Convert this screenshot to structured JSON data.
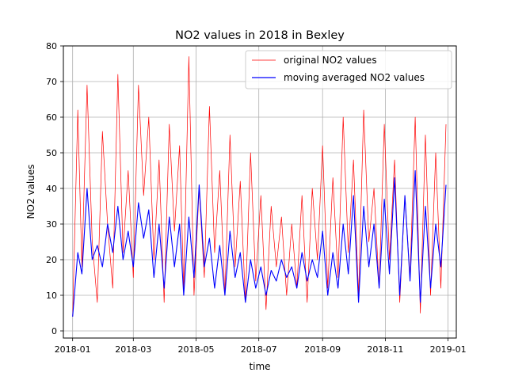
{
  "chart_data": {
    "type": "line",
    "title": "NO2 values in 2018 in Bexley",
    "xlabel": "time",
    "ylabel": "NO2 values",
    "xlim": [
      "2017-12-23",
      "2019-01-09"
    ],
    "ylim": [
      -2,
      80
    ],
    "x_ticks": [
      "2018-01",
      "2018-03",
      "2018-05",
      "2018-07",
      "2018-09",
      "2018-11",
      "2019-01"
    ],
    "y_ticks": [
      0,
      10,
      20,
      30,
      40,
      50,
      60,
      70,
      80
    ],
    "grid": true,
    "legend_position": "top-right",
    "series": [
      {
        "name": "original NO2 values",
        "color": "#ff0000",
        "x": [
          "2018-01-01",
          "2018-01-06",
          "2018-01-10",
          "2018-01-15",
          "2018-01-20",
          "2018-01-25",
          "2018-01-30",
          "2018-02-04",
          "2018-02-09",
          "2018-02-14",
          "2018-02-19",
          "2018-02-24",
          "2018-03-01",
          "2018-03-06",
          "2018-03-11",
          "2018-03-16",
          "2018-03-21",
          "2018-03-26",
          "2018-03-31",
          "2018-04-05",
          "2018-04-10",
          "2018-04-15",
          "2018-04-19",
          "2018-04-24",
          "2018-04-29",
          "2018-05-04",
          "2018-05-09",
          "2018-05-14",
          "2018-05-19",
          "2018-05-24",
          "2018-05-29",
          "2018-06-03",
          "2018-06-08",
          "2018-06-13",
          "2018-06-18",
          "2018-06-23",
          "2018-06-28",
          "2018-07-03",
          "2018-07-08",
          "2018-07-13",
          "2018-07-18",
          "2018-07-23",
          "2018-07-28",
          "2018-08-02",
          "2018-08-07",
          "2018-08-12",
          "2018-08-17",
          "2018-08-22",
          "2018-08-27",
          "2018-09-01",
          "2018-09-06",
          "2018-09-11",
          "2018-09-16",
          "2018-09-21",
          "2018-09-26",
          "2018-10-01",
          "2018-10-06",
          "2018-10-11",
          "2018-10-16",
          "2018-10-21",
          "2018-10-26",
          "2018-10-31",
          "2018-11-05",
          "2018-11-10",
          "2018-11-15",
          "2018-11-20",
          "2018-11-25",
          "2018-11-30",
          "2018-12-05",
          "2018-12-10",
          "2018-12-15",
          "2018-12-20",
          "2018-12-25",
          "2018-12-30"
        ],
        "values": [
          4,
          62,
          18,
          69,
          25,
          8,
          56,
          30,
          12,
          72,
          22,
          45,
          15,
          69,
          38,
          60,
          20,
          48,
          8,
          58,
          28,
          52,
          12,
          77,
          10,
          40,
          15,
          63,
          22,
          45,
          10,
          55,
          18,
          42,
          8,
          50,
          14,
          38,
          6,
          35,
          18,
          32,
          10,
          30,
          12,
          38,
          8,
          40,
          20,
          52,
          12,
          43,
          15,
          60,
          22,
          48,
          10,
          62,
          25,
          40,
          12,
          58,
          20,
          48,
          8,
          38,
          15,
          60,
          5,
          55,
          10,
          50,
          12,
          58
        ]
      },
      {
        "name": "moving averaged NO2 values",
        "color": "#0000ff",
        "x": [
          "2018-01-01",
          "2018-01-06",
          "2018-01-10",
          "2018-01-15",
          "2018-01-20",
          "2018-01-25",
          "2018-01-30",
          "2018-02-04",
          "2018-02-09",
          "2018-02-14",
          "2018-02-19",
          "2018-02-24",
          "2018-03-01",
          "2018-03-06",
          "2018-03-11",
          "2018-03-16",
          "2018-03-21",
          "2018-03-26",
          "2018-03-31",
          "2018-04-05",
          "2018-04-10",
          "2018-04-15",
          "2018-04-19",
          "2018-04-24",
          "2018-04-29",
          "2018-05-04",
          "2018-05-09",
          "2018-05-14",
          "2018-05-19",
          "2018-05-24",
          "2018-05-29",
          "2018-06-03",
          "2018-06-08",
          "2018-06-13",
          "2018-06-18",
          "2018-06-23",
          "2018-06-28",
          "2018-07-03",
          "2018-07-08",
          "2018-07-13",
          "2018-07-18",
          "2018-07-23",
          "2018-07-28",
          "2018-08-02",
          "2018-08-07",
          "2018-08-12",
          "2018-08-17",
          "2018-08-22",
          "2018-08-27",
          "2018-09-01",
          "2018-09-06",
          "2018-09-11",
          "2018-09-16",
          "2018-09-21",
          "2018-09-26",
          "2018-10-01",
          "2018-10-06",
          "2018-10-11",
          "2018-10-16",
          "2018-10-21",
          "2018-10-26",
          "2018-10-31",
          "2018-11-05",
          "2018-11-10",
          "2018-11-15",
          "2018-11-20",
          "2018-11-25",
          "2018-11-30",
          "2018-12-05",
          "2018-12-10",
          "2018-12-15",
          "2018-12-20",
          "2018-12-25",
          "2018-12-30"
        ],
        "values": [
          4,
          22,
          16,
          40,
          20,
          24,
          18,
          30,
          22,
          35,
          20,
          28,
          18,
          36,
          26,
          34,
          15,
          30,
          12,
          32,
          18,
          30,
          10,
          32,
          15,
          41,
          18,
          26,
          12,
          24,
          10,
          28,
          15,
          22,
          8,
          20,
          12,
          18,
          10,
          17,
          14,
          20,
          15,
          18,
          12,
          22,
          14,
          20,
          15,
          28,
          10,
          22,
          12,
          30,
          16,
          38,
          8,
          35,
          18,
          30,
          12,
          37,
          16,
          43,
          10,
          38,
          14,
          45,
          8,
          35,
          12,
          30,
          18,
          41
        ]
      }
    ]
  }
}
